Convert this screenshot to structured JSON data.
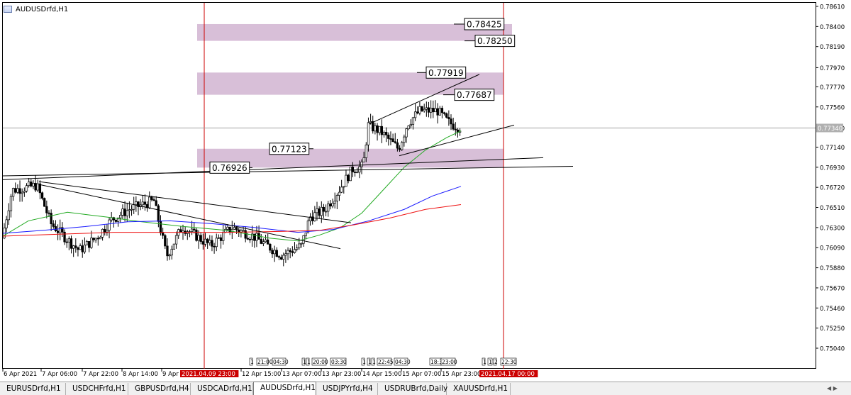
{
  "chart": {
    "symbol_title": "AUDUSDrfd,H1",
    "price_axis": [
      "0.78610",
      "0.78400",
      "0.78190",
      "0.77970",
      "0.77770",
      "0.77560",
      "0.77340",
      "0.77140",
      "0.76930",
      "0.76720",
      "0.76510",
      "0.76300",
      "0.76090",
      "0.75880",
      "0.75670",
      "0.75460",
      "0.75250",
      "0.75040"
    ],
    "current_price": "0.77340",
    "time_axis": [
      "6 Apr 2021",
      "7 Apr 06:00",
      "7 Apr 22:00",
      "8 Apr 14:00",
      "9 Apr 0",
      "12 Apr 15:00",
      "13 Apr 07:00",
      "13 Apr 23:00",
      "14 Apr 15:00",
      "15 Apr 07:00",
      "15 Apr 23:00"
    ],
    "vline_labels": [
      "2021.04.09 23:00",
      "2021.04.17 00:00"
    ],
    "level_labels": [
      "0.78425",
      "0.78250",
      "0.77919",
      "0.77687",
      "0.77123",
      "0.76926"
    ],
    "time_markers": [
      "1",
      "21:00",
      "04:30",
      "15",
      "1",
      "20:00",
      "03:30",
      "1",
      "1",
      "1",
      "22:45",
      "04:30",
      "18:3",
      "23:00",
      "1",
      "17",
      "2",
      "22:30"
    ],
    "colors": {
      "candle": "#000000",
      "zone": "#d8bfd8",
      "vline": "#cc0000",
      "ma_green": "#22aa22",
      "ma_blue": "#1a1aff",
      "ma_red": "#ee1111"
    }
  },
  "tabs": [
    "EURUSDrfd,H1",
    "USDCHFrfd,H1",
    "GBPUSDrfd,H4",
    "USDCADrfd,H1",
    "AUDUSDrfd,H1",
    "USDJPYrfd,H4",
    "USDRUBrfd,Daily",
    "XAUUSDrfd,H1"
  ],
  "active_tab": "AUDUSDrfd,H1"
}
